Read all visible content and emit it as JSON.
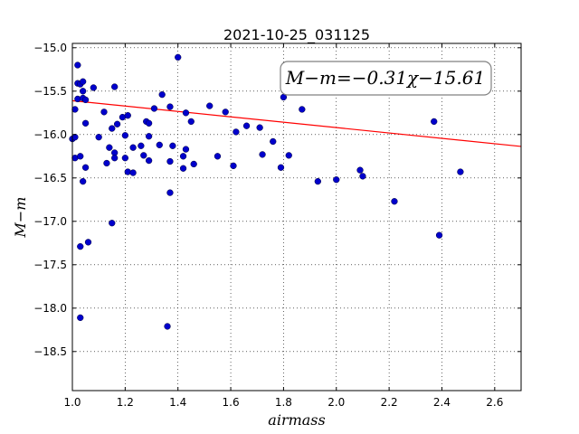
{
  "chart_data": {
    "type": "scatter",
    "title": "2021-10-25_031125",
    "xlabel": "airmass",
    "ylabel": "M−m",
    "xlim": [
      1.0,
      2.7
    ],
    "ylim": [
      -14.95,
      -18.95
    ],
    "y_inverted": true,
    "x_ticks": [
      1.0,
      1.2,
      1.4,
      1.6,
      1.8,
      2.0,
      2.2,
      2.4,
      2.6
    ],
    "x_tick_labels": [
      "1.0",
      "1.2",
      "1.4",
      "1.6",
      "1.8",
      "2.0",
      "2.2",
      "2.4",
      "2.6"
    ],
    "y_ticks": [
      -15.0,
      -15.5,
      -16.0,
      -16.5,
      -17.0,
      -17.5,
      -18.0,
      -18.5
    ],
    "y_tick_labels": [
      "−15.0",
      "−15.5",
      "−16.0",
      "−16.5",
      "−17.0",
      "−17.5",
      "−18.0",
      "−18.5"
    ],
    "grid": true,
    "annotation": "M−m=−0.31χ−15.61",
    "annotation_position": "top-right",
    "fit": {
      "slope": -0.31,
      "intercept": -15.61,
      "color": "#ff0000"
    },
    "point_color": "#0000cc",
    "points": [
      [
        1.0,
        -16.05
      ],
      [
        1.01,
        -16.03
      ],
      [
        1.01,
        -16.27
      ],
      [
        1.01,
        -15.71
      ],
      [
        1.02,
        -15.59
      ],
      [
        1.02,
        -15.41
      ],
      [
        1.02,
        -15.2
      ],
      [
        1.03,
        -15.42
      ],
      [
        1.03,
        -16.25
      ],
      [
        1.03,
        -17.29
      ],
      [
        1.03,
        -18.11
      ],
      [
        1.04,
        -15.39
      ],
      [
        1.04,
        -15.58
      ],
      [
        1.04,
        -15.5
      ],
      [
        1.04,
        -16.54
      ],
      [
        1.05,
        -15.6
      ],
      [
        1.05,
        -15.87
      ],
      [
        1.05,
        -16.38
      ],
      [
        1.06,
        -17.24
      ],
      [
        1.08,
        -15.46
      ],
      [
        1.1,
        -16.03
      ],
      [
        1.12,
        -15.74
      ],
      [
        1.13,
        -16.33
      ],
      [
        1.14,
        -16.15
      ],
      [
        1.15,
        -15.93
      ],
      [
        1.15,
        -17.02
      ],
      [
        1.16,
        -15.45
      ],
      [
        1.16,
        -16.21
      ],
      [
        1.16,
        -16.27
      ],
      [
        1.17,
        -15.88
      ],
      [
        1.19,
        -15.8
      ],
      [
        1.2,
        -16.01
      ],
      [
        1.2,
        -16.27
      ],
      [
        1.21,
        -15.78
      ],
      [
        1.21,
        -16.43
      ],
      [
        1.23,
        -16.44
      ],
      [
        1.23,
        -16.15
      ],
      [
        1.26,
        -16.13
      ],
      [
        1.27,
        -16.24
      ],
      [
        1.28,
        -15.85
      ],
      [
        1.29,
        -16.3
      ],
      [
        1.29,
        -15.87
      ],
      [
        1.29,
        -16.02
      ],
      [
        1.31,
        -15.7
      ],
      [
        1.33,
        -16.12
      ],
      [
        1.34,
        -15.54
      ],
      [
        1.36,
        -18.21
      ],
      [
        1.37,
        -16.67
      ],
      [
        1.37,
        -16.31
      ],
      [
        1.37,
        -15.68
      ],
      [
        1.38,
        -16.13
      ],
      [
        1.4,
        -15.11
      ],
      [
        1.42,
        -16.25
      ],
      [
        1.42,
        -16.39
      ],
      [
        1.43,
        -15.75
      ],
      [
        1.43,
        -16.17
      ],
      [
        1.45,
        -15.85
      ],
      [
        1.46,
        -16.34
      ],
      [
        1.52,
        -15.67
      ],
      [
        1.55,
        -16.25
      ],
      [
        1.58,
        -15.74
      ],
      [
        1.61,
        -16.36
      ],
      [
        1.62,
        -15.97
      ],
      [
        1.66,
        -15.9
      ],
      [
        1.71,
        -15.92
      ],
      [
        1.72,
        -16.23
      ],
      [
        1.76,
        -16.08
      ],
      [
        1.79,
        -16.38
      ],
      [
        1.8,
        -15.57
      ],
      [
        1.82,
        -16.24
      ],
      [
        1.87,
        -15.71
      ],
      [
        1.93,
        -16.54
      ],
      [
        2.0,
        -16.52
      ],
      [
        2.09,
        -16.41
      ],
      [
        2.1,
        -16.48
      ],
      [
        2.22,
        -16.77
      ],
      [
        2.37,
        -15.85
      ],
      [
        2.39,
        -17.16
      ],
      [
        2.47,
        -16.43
      ]
    ]
  }
}
